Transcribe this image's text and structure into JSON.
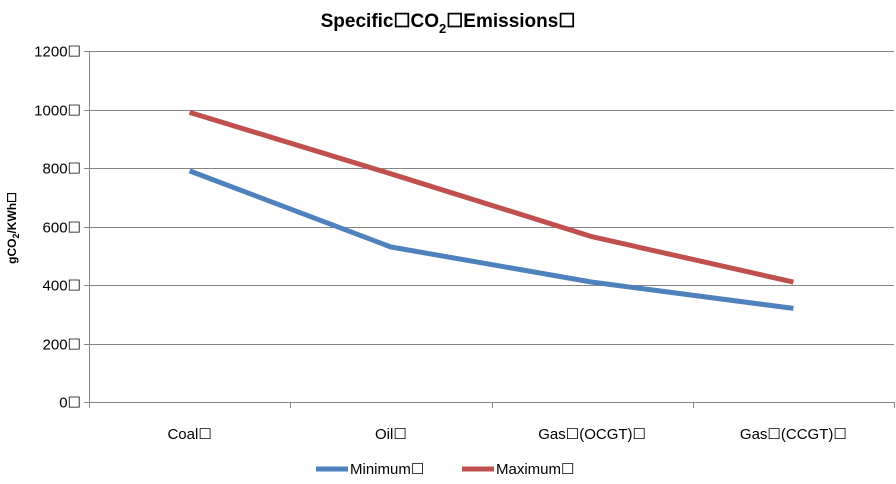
{
  "chart_data": {
    "type": "line",
    "title": "Specific☐CO₂☐Emissions☐",
    "title_parts": {
      "before": "Specific☐CO",
      "sub": "2",
      "after": "☐Emissions☐"
    },
    "ylabel": "gCO₂/KWh☐",
    "ylabel_parts": {
      "before": "gCO",
      "sub": "2",
      "after": "/KWh☐"
    },
    "xlabel": "",
    "categories": [
      "Coal☐",
      "Oil☐",
      "Gas☐(OCGT)☐",
      "Gas☐(CCGT)☐"
    ],
    "ylim": [
      0,
      1200
    ],
    "yticks": [
      0,
      200,
      400,
      600,
      800,
      1000,
      1200
    ],
    "ytick_labels": [
      "0☐",
      "200☐",
      "400☐",
      "600☐",
      "800☐",
      "1000☐",
      "1200☐"
    ],
    "grid": "horizontal",
    "legend_position": "bottom",
    "series": [
      {
        "name": "Minimum☐",
        "color": "#4F81BD",
        "values": [
          790,
          530,
          410,
          320
        ]
      },
      {
        "name": "Maximum☐",
        "color": "#C0504D",
        "values": [
          990,
          780,
          565,
          410
        ]
      }
    ]
  }
}
